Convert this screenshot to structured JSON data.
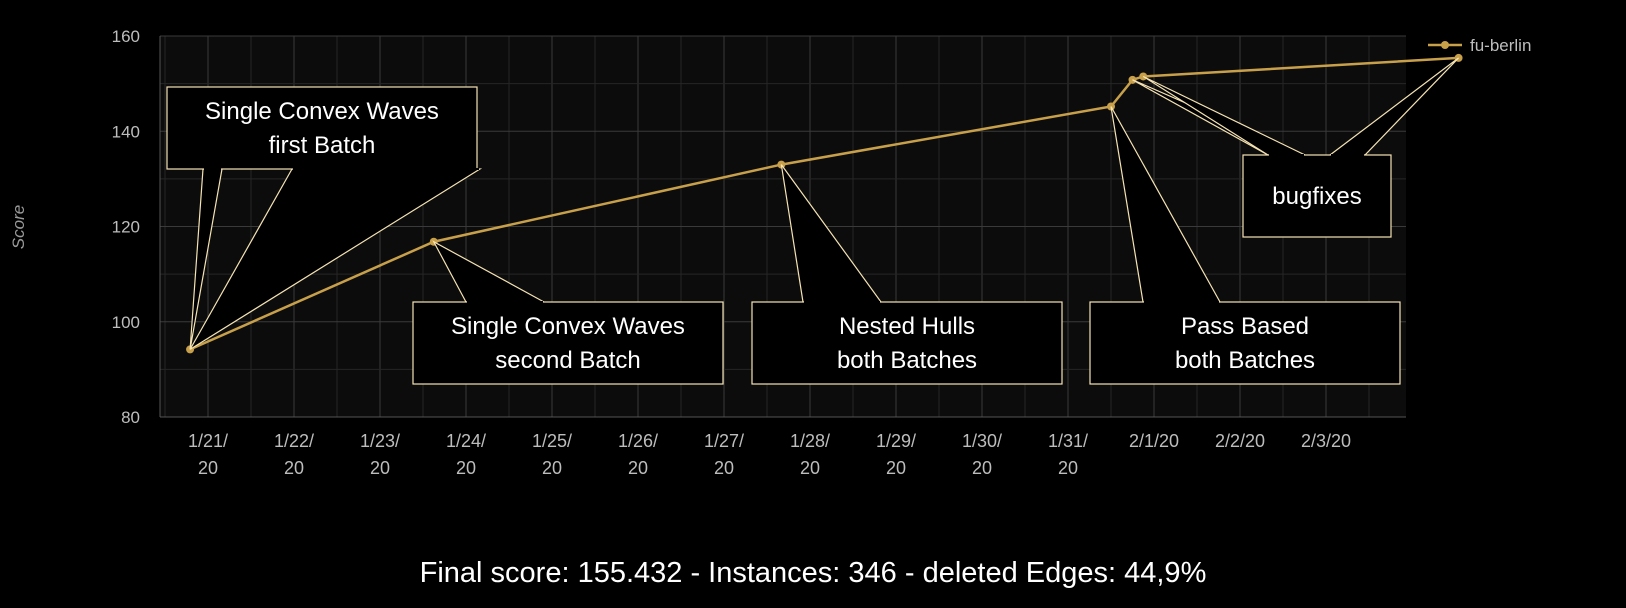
{
  "chart_data": {
    "type": "line",
    "ylabel": "Score",
    "ylim": [
      80,
      160
    ],
    "yticks": [
      80,
      100,
      120,
      140,
      160
    ],
    "xticks": [
      "1/21/ 20",
      "1/22/ 20",
      "1/23/ 20",
      "1/24/ 20",
      "1/25/ 20",
      "1/26/ 20",
      "1/27/ 20",
      "1/28/ 20",
      "1/29/ 20",
      "1/30/ 20",
      "1/31/ 20",
      "2/1/20",
      "2/2/20",
      "2/3/20"
    ],
    "grid": true,
    "legend": "top-right",
    "series": [
      {
        "name": "fu-berlin",
        "color": "#c8a04a",
        "points": [
          {
            "x": "2020-01-20T19:00",
            "y": 94.2
          },
          {
            "x": "2020-01-23T15:00",
            "y": 116.8
          },
          {
            "x": "2020-01-27T16:00",
            "y": 133.0
          },
          {
            "x": "2020-01-31T12:00",
            "y": 145.2
          },
          {
            "x": "2020-01-31T18:00",
            "y": 150.8
          },
          {
            "x": "2020-01-31T21:00",
            "y": 151.5
          },
          {
            "x": "2020-02-04T13:00",
            "y": 155.4
          }
        ]
      }
    ],
    "annotations": [
      {
        "lines": [
          "Single Convex Waves",
          "first Batch"
        ],
        "point": 0
      },
      {
        "lines": [
          "Single Convex Waves",
          "second Batch"
        ],
        "point": 1
      },
      {
        "lines": [
          "Nested Hulls",
          "both Batches"
        ],
        "point": 2
      },
      {
        "lines": [
          "Pass Based",
          "both Batches"
        ],
        "point": 3
      },
      {
        "lines": [
          "bugfixes"
        ],
        "points": [
          4,
          5,
          6
        ]
      }
    ]
  },
  "footer": "Final score: 155.432  -  Instances: 346  -  deleted Edges: 44,9%"
}
